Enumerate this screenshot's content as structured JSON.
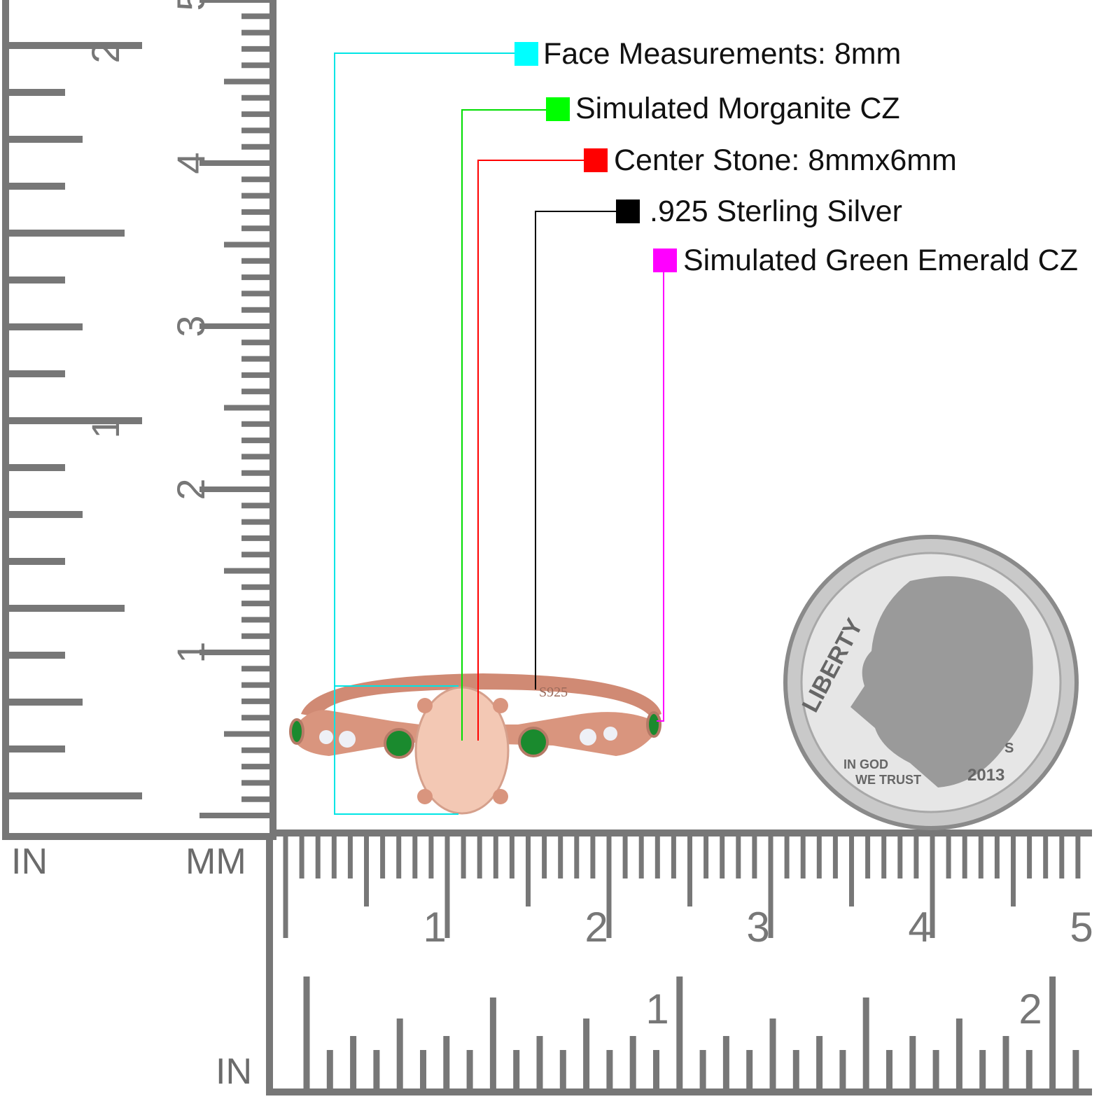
{
  "callouts": [
    {
      "text": "Face Measurements: 8mm",
      "color": "#00ffff"
    },
    {
      "text": "Simulated Morganite CZ",
      "color": "#00ff00"
    },
    {
      "text": "Center Stone: 8mmx6mm",
      "color": "#ff0000"
    },
    {
      "text": ".925 Sterling Silver",
      "color": "#000000"
    },
    {
      "text": "Simulated Green Emerald CZ",
      "color": "#ff00ff"
    }
  ],
  "ruler": {
    "unit_in": "IN",
    "unit_mm": "MM",
    "unit_in_bottom": "IN",
    "vertical_mm_labels": [
      "1",
      "2",
      "3",
      "4",
      "5"
    ],
    "vertical_in_labels": [
      "1",
      "2"
    ],
    "horizontal_mm_labels": [
      "1",
      "2",
      "3",
      "4",
      "5"
    ],
    "horizontal_in_labels": [
      "1",
      "2"
    ],
    "color": "#777777"
  },
  "ring": {
    "engraving": "S925",
    "metal_color": "#d9957e",
    "center_stone_color": "#f3c8b4",
    "side_stone_color": "#1a8a2e"
  },
  "coin": {
    "liberty": "LIBERTY",
    "motto_line1": "IN GOD",
    "motto_line2": "WE TRUST",
    "year": "2013",
    "mint_mark": "S"
  }
}
